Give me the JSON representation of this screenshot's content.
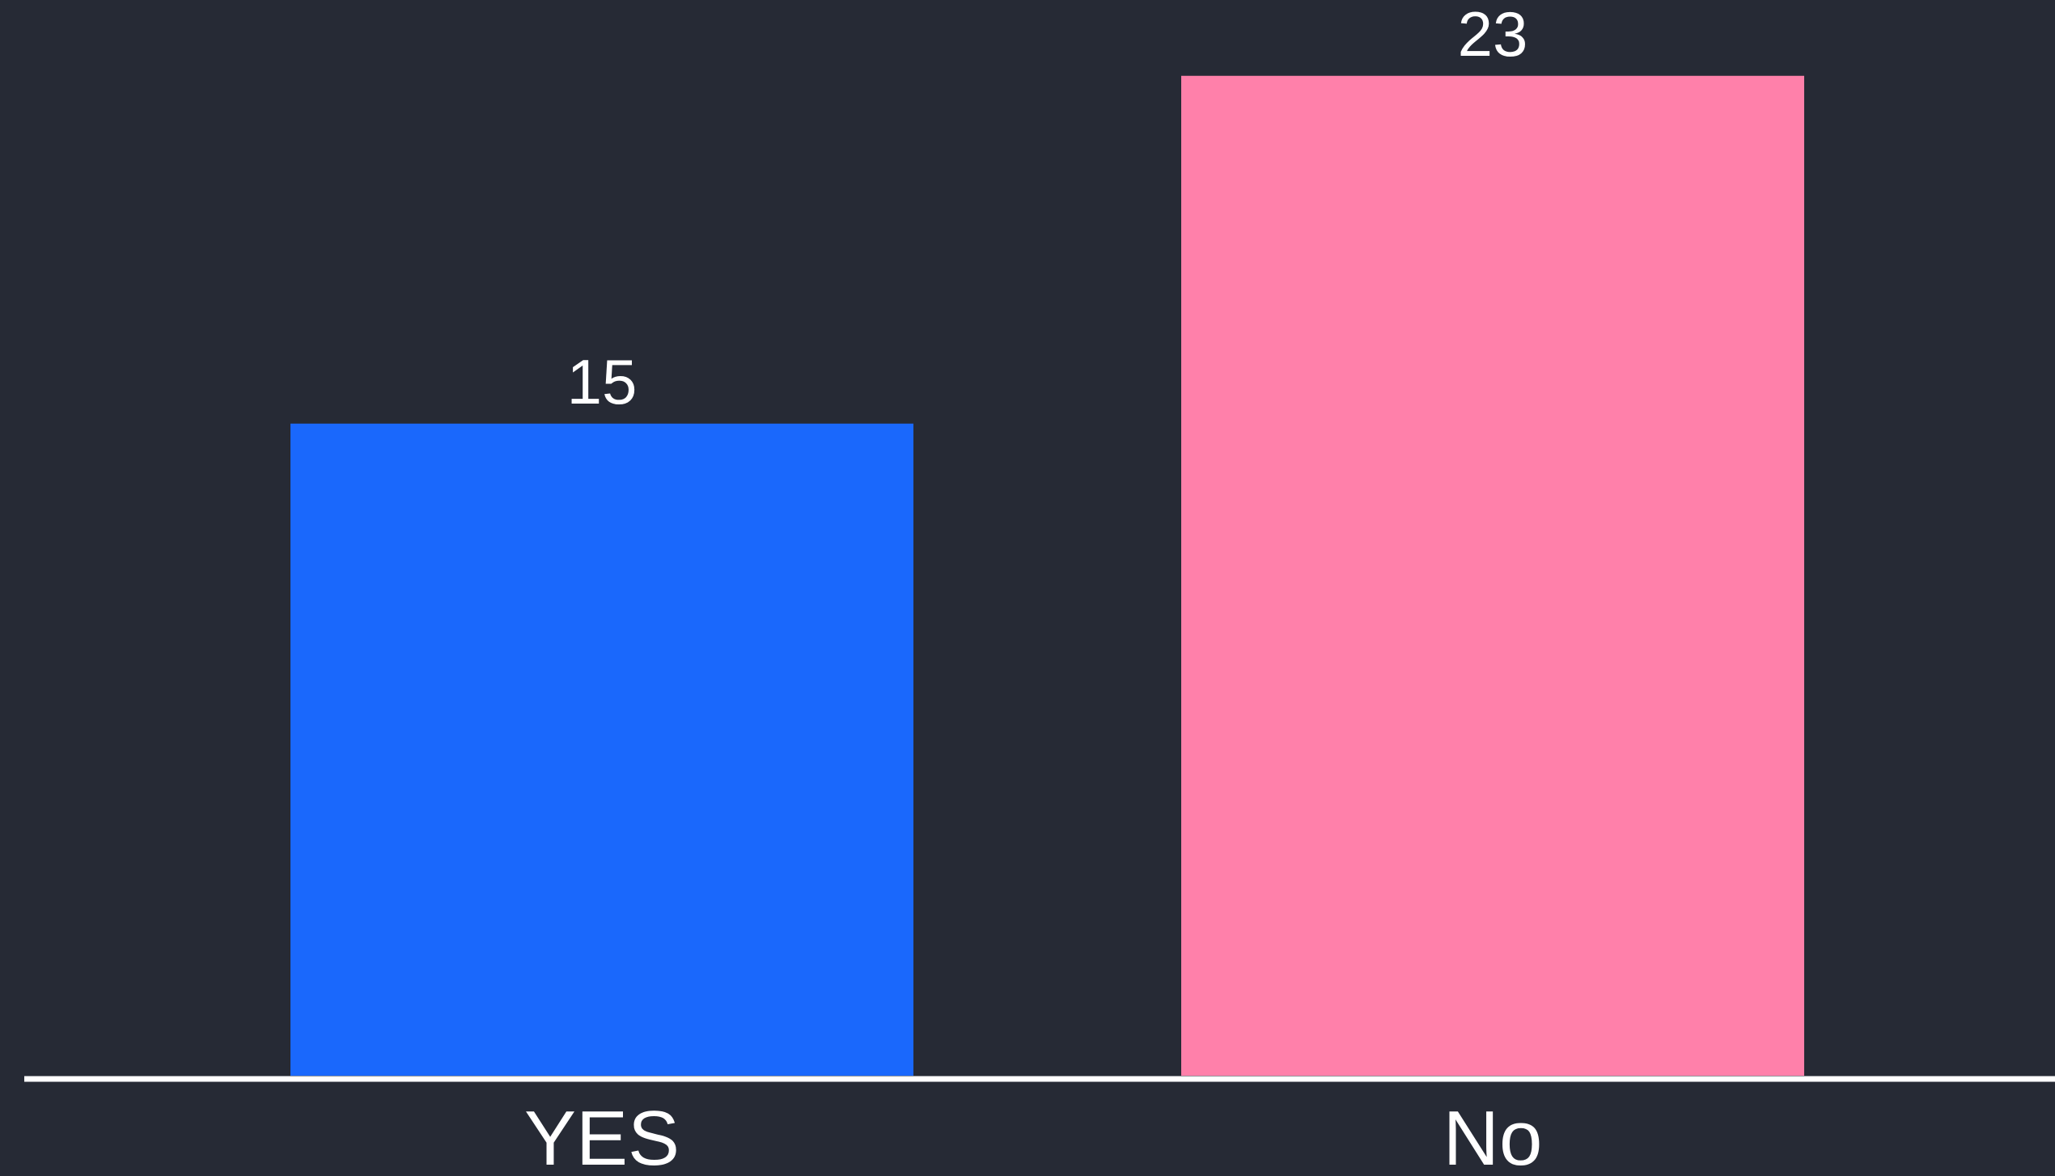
{
  "chart_data": {
    "type": "bar",
    "categories": [
      "YES",
      "No"
    ],
    "values": [
      15,
      23
    ],
    "data_labels": [
      "15",
      "23"
    ],
    "ylim": [
      0,
      24
    ],
    "grid": false,
    "colors": {
      "background": "#262a35",
      "bars": [
        "#1a68fc",
        "#ff80aa"
      ],
      "baseline": "#ffffff",
      "text": "#ffffff"
    }
  }
}
